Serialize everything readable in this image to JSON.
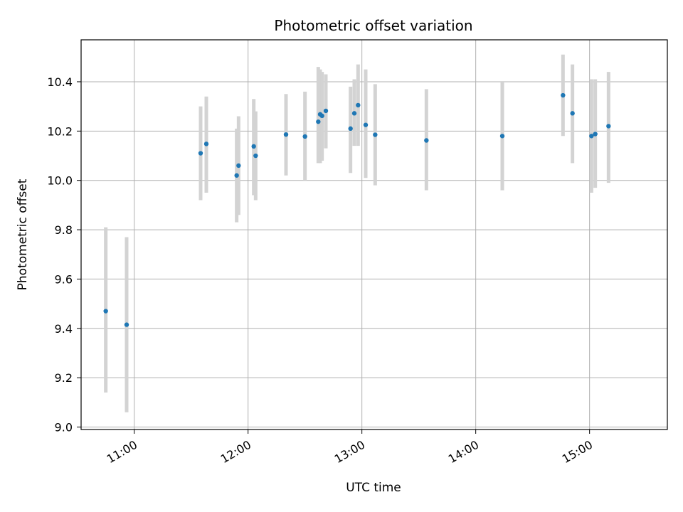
{
  "chart_data": {
    "type": "scatter",
    "title": "Photometric offset variation",
    "xlabel": "UTC time",
    "ylabel": "Photometric offset",
    "x_ticks": [
      "11:00",
      "12:00",
      "13:00",
      "14:00",
      "15:00"
    ],
    "y_ticks": [
      "9.0",
      "9.2",
      "9.4",
      "9.6",
      "9.8",
      "10.0",
      "10.2",
      "10.4"
    ],
    "xlim": [
      "10:32",
      "15:41"
    ],
    "ylim": [
      8.99,
      10.57
    ],
    "grid": true,
    "point_color": "#1f77b4",
    "errorbar_color": "#d3d3d3",
    "points": [
      {
        "x": "10:45",
        "y": 9.47,
        "ylow": 9.14,
        "yhigh": 9.81
      },
      {
        "x": "10:56",
        "y": 9.415,
        "ylow": 9.06,
        "yhigh": 9.77
      },
      {
        "x": "11:35",
        "y": 10.11,
        "ylow": 9.92,
        "yhigh": 10.3
      },
      {
        "x": "11:38",
        "y": 10.148,
        "ylow": 9.95,
        "yhigh": 10.34
      },
      {
        "x": "11:54",
        "y": 10.02,
        "ylow": 9.83,
        "yhigh": 10.21
      },
      {
        "x": "11:55",
        "y": 10.06,
        "ylow": 9.86,
        "yhigh": 10.26
      },
      {
        "x": "12:03",
        "y": 10.138,
        "ylow": 9.94,
        "yhigh": 10.33
      },
      {
        "x": "12:04",
        "y": 10.1,
        "ylow": 9.92,
        "yhigh": 10.28
      },
      {
        "x": "12:20",
        "y": 10.186,
        "ylow": 10.02,
        "yhigh": 10.35
      },
      {
        "x": "12:30",
        "y": 10.178,
        "ylow": 10.0,
        "yhigh": 10.36
      },
      {
        "x": "12:37",
        "y": 10.238,
        "ylow": 10.07,
        "yhigh": 10.46
      },
      {
        "x": "12:38",
        "y": 10.268,
        "ylow": 10.07,
        "yhigh": 10.45
      },
      {
        "x": "12:39",
        "y": 10.262,
        "ylow": 10.08,
        "yhigh": 10.44
      },
      {
        "x": "12:41",
        "y": 10.282,
        "ylow": 10.13,
        "yhigh": 10.43
      },
      {
        "x": "12:54",
        "y": 10.21,
        "ylow": 10.03,
        "yhigh": 10.38
      },
      {
        "x": "12:56",
        "y": 10.272,
        "ylow": 10.14,
        "yhigh": 10.41
      },
      {
        "x": "12:58",
        "y": 10.305,
        "ylow": 10.14,
        "yhigh": 10.47
      },
      {
        "x": "13:02",
        "y": 10.225,
        "ylow": 10.01,
        "yhigh": 10.45
      },
      {
        "x": "13:07",
        "y": 10.185,
        "ylow": 9.98,
        "yhigh": 10.39
      },
      {
        "x": "13:34",
        "y": 10.162,
        "ylow": 9.96,
        "yhigh": 10.37
      },
      {
        "x": "14:14",
        "y": 10.18,
        "ylow": 9.96,
        "yhigh": 10.4
      },
      {
        "x": "14:46",
        "y": 10.345,
        "ylow": 10.18,
        "yhigh": 10.51
      },
      {
        "x": "14:51",
        "y": 10.272,
        "ylow": 10.07,
        "yhigh": 10.47
      },
      {
        "x": "15:01",
        "y": 10.18,
        "ylow": 9.95,
        "yhigh": 10.41
      },
      {
        "x": "15:03",
        "y": 10.188,
        "ylow": 9.97,
        "yhigh": 10.41
      },
      {
        "x": "15:10",
        "y": 10.22,
        "ylow": 9.99,
        "yhigh": 10.44
      }
    ]
  }
}
